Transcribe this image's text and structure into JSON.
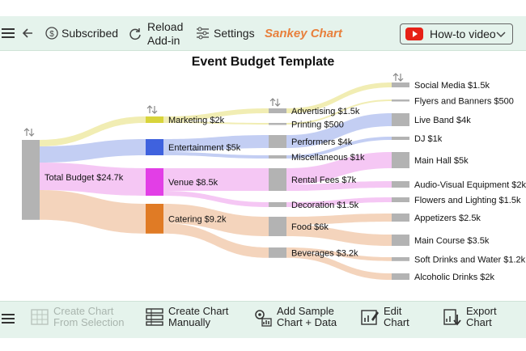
{
  "toolbar": {
    "subscribed_label": "Subscribed",
    "reload_label_line1": "Reload",
    "reload_label_line2": "Add-in",
    "settings_label": "Settings",
    "brand": "Sankey Chart",
    "video_label": "How-to video"
  },
  "bottombar": {
    "create_selection_line1": "Create Chart",
    "create_selection_line2": "From Selection",
    "create_manual_line1": "Create Chart",
    "create_manual_line2": "Manually",
    "add_sample_line1": "Add Sample",
    "add_sample_line2": "Chart + Data",
    "edit_line1": "Edit",
    "edit_line2": "Chart",
    "export_line1": "Export",
    "export_line2": "Chart"
  },
  "colors": {
    "toolbar_bg": "#e5f3ec",
    "brand": "#e8803c",
    "node_gray": "#b3b3b3",
    "marketing": "#d8d43b",
    "entertainment": "#3f62de",
    "venue": "#e23ee6",
    "catering": "#e07b25"
  },
  "chart_data": {
    "type": "sankey",
    "title": "Event Budget Template",
    "nodes": [
      {
        "id": "total",
        "label": "Total Budget $24.7k",
        "value": 24.7
      },
      {
        "id": "marketing",
        "label": "Marketing $2k",
        "value": 2
      },
      {
        "id": "entertainment",
        "label": "Entertainment $5k",
        "value": 5
      },
      {
        "id": "venue",
        "label": "Venue $8.5k",
        "value": 8.5
      },
      {
        "id": "catering",
        "label": "Catering $9.2k",
        "value": 9.2
      },
      {
        "id": "advertising",
        "label": "Advertising $1.5k",
        "value": 1.5
      },
      {
        "id": "printing",
        "label": "Printing $500",
        "value": 0.5
      },
      {
        "id": "performers",
        "label": "Performers $4k",
        "value": 4
      },
      {
        "id": "misc",
        "label": "Miscellaneous $1k",
        "value": 1
      },
      {
        "id": "rental",
        "label": "Rental Fees $7k",
        "value": 7
      },
      {
        "id": "decoration",
        "label": "Decoration $1.5k",
        "value": 1.5
      },
      {
        "id": "food",
        "label": "Food $6k",
        "value": 6
      },
      {
        "id": "beverages",
        "label": "Beverages $3.2k",
        "value": 3.2
      },
      {
        "id": "social",
        "label": "Social Media $1.5k",
        "value": 1.5
      },
      {
        "id": "flyers",
        "label": "Flyers and Banners $500",
        "value": 0.5
      },
      {
        "id": "liveband",
        "label": "Live Band $4k",
        "value": 4
      },
      {
        "id": "dj",
        "label": "DJ $1k",
        "value": 1
      },
      {
        "id": "mainhall",
        "label": "Main Hall $5k",
        "value": 5
      },
      {
        "id": "av",
        "label": "Audio-Visual Equipment $2k",
        "value": 2
      },
      {
        "id": "flowers",
        "label": "Flowers and Lighting $1.5k",
        "value": 1.5
      },
      {
        "id": "appetizers",
        "label": "Appetizers $2.5k",
        "value": 2.5
      },
      {
        "id": "maincourse",
        "label": "Main Course $3.5k",
        "value": 3.5
      },
      {
        "id": "softdrinks",
        "label": "Soft Drinks and Water $1.2k",
        "value": 1.2
      },
      {
        "id": "alcohol",
        "label": "Alcoholic Drinks $2k",
        "value": 2
      }
    ],
    "links": [
      {
        "source": "total",
        "target": "marketing",
        "value": 2
      },
      {
        "source": "total",
        "target": "entertainment",
        "value": 5
      },
      {
        "source": "total",
        "target": "venue",
        "value": 8.5
      },
      {
        "source": "total",
        "target": "catering",
        "value": 9.2
      },
      {
        "source": "marketing",
        "target": "advertising",
        "value": 1.5
      },
      {
        "source": "marketing",
        "target": "printing",
        "value": 0.5
      },
      {
        "source": "entertainment",
        "target": "performers",
        "value": 4
      },
      {
        "source": "entertainment",
        "target": "misc",
        "value": 1
      },
      {
        "source": "venue",
        "target": "rental",
        "value": 7
      },
      {
        "source": "venue",
        "target": "decoration",
        "value": 1.5
      },
      {
        "source": "catering",
        "target": "food",
        "value": 6
      },
      {
        "source": "catering",
        "target": "beverages",
        "value": 3.2
      },
      {
        "source": "advertising",
        "target": "social",
        "value": 1.5
      },
      {
        "source": "printing",
        "target": "flyers",
        "value": 0.5
      },
      {
        "source": "performers",
        "target": "liveband",
        "value": 4
      },
      {
        "source": "misc",
        "target": "dj",
        "value": 1
      },
      {
        "source": "rental",
        "target": "mainhall",
        "value": 5
      },
      {
        "source": "rental",
        "target": "av",
        "value": 2
      },
      {
        "source": "decoration",
        "target": "flowers",
        "value": 1.5
      },
      {
        "source": "food",
        "target": "appetizers",
        "value": 2.5
      },
      {
        "source": "food",
        "target": "maincourse",
        "value": 3.5
      },
      {
        "source": "beverages",
        "target": "softdrinks",
        "value": 1.2
      },
      {
        "source": "beverages",
        "target": "alcohol",
        "value": 2
      }
    ]
  }
}
